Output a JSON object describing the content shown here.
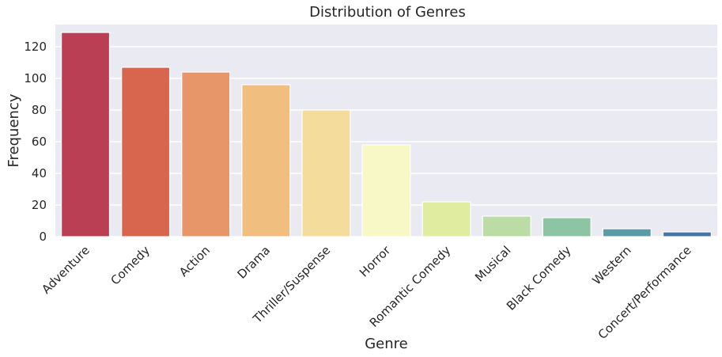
{
  "chart_data": {
    "type": "bar",
    "title": "Distribution of Genres",
    "xlabel": "Genre",
    "ylabel": "Frequency",
    "ylim": [
      0,
      134
    ],
    "yticks": [
      0,
      20,
      40,
      60,
      80,
      100,
      120
    ],
    "grid": true,
    "categories": [
      "Adventure",
      "Comedy",
      "Action",
      "Drama",
      "Thriller/Suspense",
      "Horror",
      "Romantic Comedy",
      "Musical",
      "Black Comedy",
      "Western",
      "Concert/Performance"
    ],
    "values": [
      129,
      107,
      104,
      96,
      80,
      58,
      22,
      13,
      12,
      5,
      3
    ],
    "colors": [
      "#ba3f55",
      "#d8664f",
      "#e7966a",
      "#f0be7f",
      "#f3dc9c",
      "#f8f7c6",
      "#e0eda0",
      "#bcdca5",
      "#8dc5a4",
      "#5a9ba5",
      "#4574a6"
    ],
    "plot_background": "#eaeaf2",
    "grid_color": "#ffffff"
  }
}
